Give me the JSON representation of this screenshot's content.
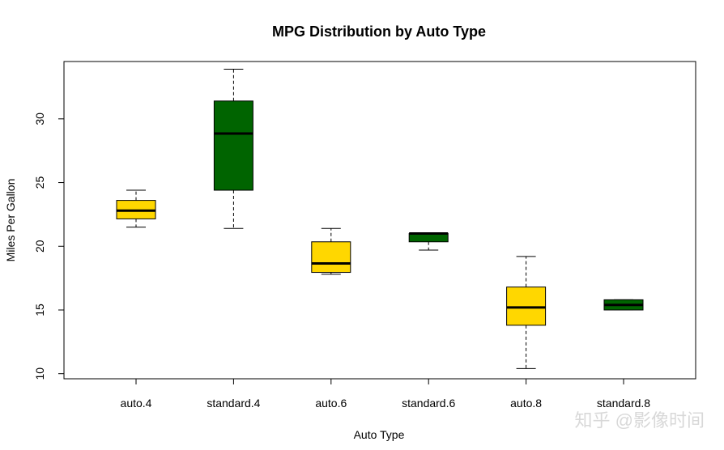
{
  "chart_data": {
    "type": "boxplot",
    "title": "MPG Distribution by Auto Type",
    "xlabel": "Auto Type",
    "ylabel": "Miles Per Gallon",
    "ylim": [
      9.6,
      34.5
    ],
    "yticks": [
      10,
      15,
      20,
      25,
      30
    ],
    "grid": false,
    "legend": "none",
    "categories": [
      "auto.4",
      "standard.4",
      "auto.6",
      "standard.6",
      "auto.8",
      "standard.8"
    ],
    "boxes": [
      {
        "category": "auto.4",
        "min": 21.5,
        "q1": 22.15,
        "median": 22.8,
        "q3": 23.6,
        "max": 24.4,
        "color": "#FFD700"
      },
      {
        "category": "standard.4",
        "min": 21.4,
        "q1": 24.4,
        "median": 28.85,
        "q3": 31.4,
        "max": 33.9,
        "color": "#006400"
      },
      {
        "category": "auto.6",
        "min": 17.8,
        "q1": 17.95,
        "median": 18.65,
        "q3": 20.35,
        "max": 21.4,
        "color": "#FFD700"
      },
      {
        "category": "standard.6",
        "min": 19.7,
        "q1": 20.35,
        "median": 21.0,
        "q3": 21.0,
        "max": 21.0,
        "color": "#006400"
      },
      {
        "category": "auto.8",
        "min": 10.4,
        "q1": 13.8,
        "median": 15.2,
        "q3": 16.8,
        "max": 19.2,
        "color": "#FFD700"
      },
      {
        "category": "standard.8",
        "min": 15.0,
        "q1": 15.0,
        "median": 15.4,
        "q3": 15.8,
        "max": 15.8,
        "color": "#006400"
      }
    ]
  },
  "watermark": "知乎 @影像时间"
}
